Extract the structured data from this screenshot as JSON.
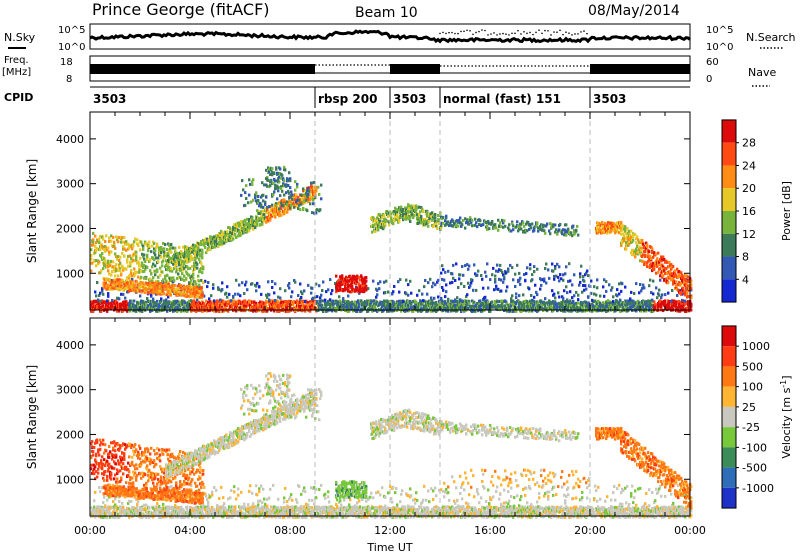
{
  "header": {
    "station": "Prince George (fitACF)",
    "beam": "Beam 10",
    "date": "08/May/2014"
  },
  "panel_labels": {
    "nsky": "N.Sky",
    "nsearch": "N.Search",
    "freq_line1": "Freq.",
    "freq_line2": "[MHz]",
    "nave": "Nave",
    "cpid": "CPID"
  },
  "top_ticks": {
    "nsky_hi": "10^5",
    "nsky_lo": "10^0",
    "freq_hi": "18",
    "freq_lo": "8",
    "nave_hi": "60",
    "nave_lo": "0"
  },
  "cpid_segments": [
    {
      "label": "3503",
      "start_hour": 0,
      "end_hour": 9
    },
    {
      "label": "rbsp 200",
      "start_hour": 9,
      "end_hour": 12
    },
    {
      "label": "3503",
      "start_hour": 12,
      "end_hour": 14
    },
    {
      "label": "normal (fast) 151",
      "start_hour": 14,
      "end_hour": 20
    },
    {
      "label": "3503",
      "start_hour": 20,
      "end_hour": 24
    }
  ],
  "chart_data": [
    {
      "type": "heatmap",
      "ylabel": "Slant Range [km]",
      "xlabel": "",
      "xlim_hours": [
        0,
        24
      ],
      "ylim": [
        180,
        4600
      ],
      "yticks": [
        "1000",
        "2000",
        "3000",
        "4000"
      ],
      "colorbar": {
        "label": "Power [dB]",
        "ticks": [
          "4",
          "8",
          "12",
          "16",
          "20",
          "24",
          "28"
        ],
        "colors": [
          "#1428d2",
          "#325ab4",
          "#3c7a5a",
          "#78b43c",
          "#e6c828",
          "#ff8c14",
          "#ff4a14",
          "#dc0a0a"
        ]
      }
    },
    {
      "type": "heatmap",
      "ylabel": "Slant Range [km]",
      "xlabel": "Time UT",
      "xlim_hours": [
        0,
        24
      ],
      "ylim": [
        180,
        4600
      ],
      "yticks": [
        "1000",
        "2000",
        "3000",
        "4000"
      ],
      "xticks": [
        "00:00",
        "04:00",
        "08:00",
        "12:00",
        "16:00",
        "20:00",
        "00:00"
      ],
      "colorbar": {
        "label": "Velocity [m s",
        "label_sup": "-1",
        "label_tail": "]",
        "ticks": [
          "1000",
          "500",
          "100",
          "25",
          "-25",
          "-100",
          "-500",
          "-1000"
        ],
        "colors": [
          "#1e32c8",
          "#2e6eb8",
          "#3c8c5a",
          "#78c83c",
          "#c8c8be",
          "#ffb432",
          "#ff7814",
          "#ff3c14",
          "#dc0a0a"
        ]
      }
    }
  ]
}
